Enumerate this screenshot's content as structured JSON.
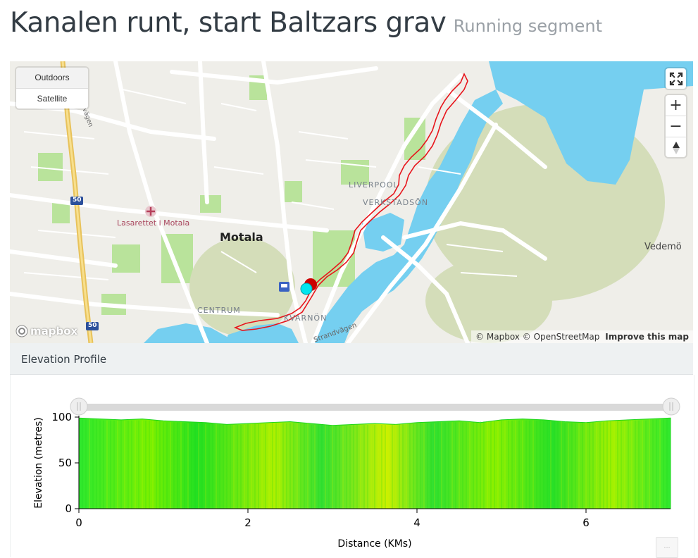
{
  "header": {
    "title": "Kanalen runt, start Baltzars grav",
    "subtitle": "Running segment"
  },
  "map": {
    "style_options": [
      "Outdoors",
      "Satellite"
    ],
    "active_style": "Outdoors",
    "zoom_in_label": "+",
    "zoom_out_label": "−",
    "logo_text": "mapbox",
    "attribution_mapbox": "© Mapbox",
    "attribution_osm": "© OpenStreetMap",
    "improve_link": "Improve this map",
    "labels": {
      "motala": "Motala",
      "hospital": "Lasarettet i Motala",
      "liverpool": "LIVERPOOL",
      "verkstadson": "VERKSTADSÖN",
      "centrum": "CENTRUM",
      "kvarnon": "KVARNÖN",
      "vedemo": "Vedemö",
      "strandvagen": "Strandvägen",
      "road_left": "vägen",
      "shield_50_top": "50",
      "shield_50_bottom": "50"
    },
    "colors": {
      "water": "#75cff0",
      "park": "#a7e28c",
      "route": "#e8141b",
      "start_marker": "#cc0000",
      "end_marker": "#00e5ee"
    }
  },
  "elevation": {
    "panel_title": "Elevation Profile",
    "more_button": "..."
  },
  "chart_data": {
    "type": "area",
    "xlabel": "Distance (KMs)",
    "ylabel": "Elevation (metres)",
    "xlim": [
      0,
      7
    ],
    "ylim": [
      0,
      100
    ],
    "x_ticks": [
      "0",
      "2",
      "4",
      "6"
    ],
    "y_ticks": [
      "0",
      "50",
      "100"
    ],
    "x": [
      0,
      0.25,
      0.5,
      0.75,
      1.0,
      1.25,
      1.5,
      1.75,
      2.0,
      2.25,
      2.5,
      2.75,
      3.0,
      3.25,
      3.5,
      3.75,
      4.0,
      4.25,
      4.5,
      4.75,
      5.0,
      5.25,
      5.5,
      5.75,
      6.0,
      6.25,
      6.5,
      6.75,
      7.0
    ],
    "y": [
      99,
      98,
      97,
      98,
      96,
      95,
      94,
      92,
      93,
      94,
      95,
      93,
      91,
      92,
      93,
      92,
      94,
      95,
      96,
      94,
      97,
      98,
      97,
      95,
      94,
      96,
      97,
      98,
      99
    ],
    "fill_gradient": [
      "#1ee81e",
      "#5cf000",
      "#c8f000"
    ]
  }
}
